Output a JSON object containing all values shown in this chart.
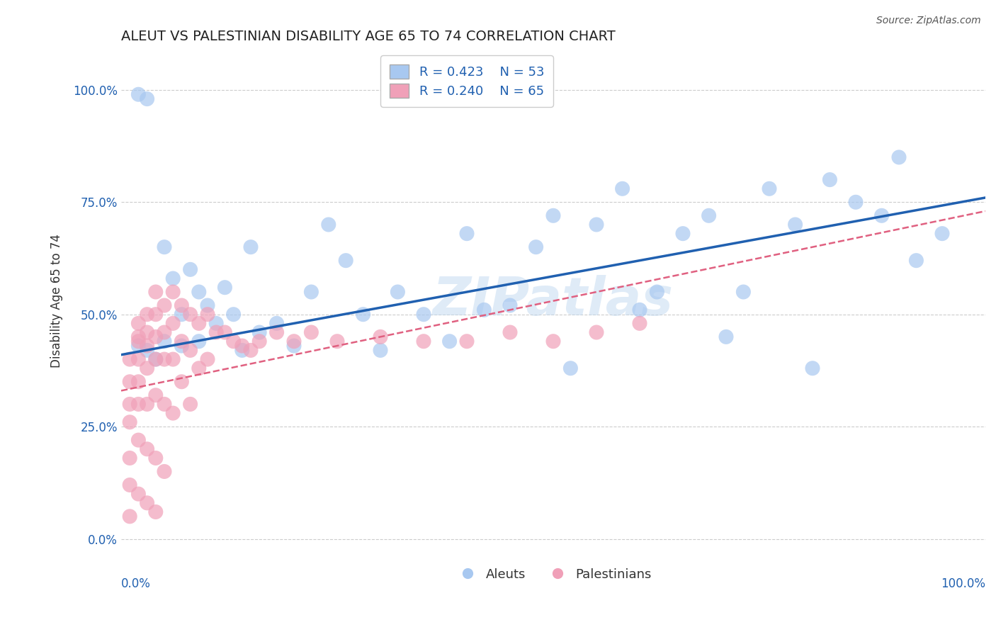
{
  "title": "ALEUT VS PALESTINIAN DISABILITY AGE 65 TO 74 CORRELATION CHART",
  "source": "Source: ZipAtlas.com",
  "ylabel": "Disability Age 65 to 74",
  "yticks": [
    "0.0%",
    "25.0%",
    "50.0%",
    "75.0%",
    "100.0%"
  ],
  "ytick_vals": [
    0.0,
    0.25,
    0.5,
    0.75,
    1.0
  ],
  "xlim": [
    0,
    1.0
  ],
  "ylim": [
    -0.02,
    1.08
  ],
  "aleut_R": 0.423,
  "aleut_N": 53,
  "palest_R": 0.24,
  "palest_N": 65,
  "aleut_color": "#A8C8F0",
  "palest_color": "#F0A0B8",
  "aleut_line_color": "#2060B0",
  "palest_line_color": "#E06080",
  "watermark": "ZIPatlas",
  "background_color": "#FFFFFF",
  "grid_color": "#CCCCCC",
  "aleut_x": [
    0.02,
    0.03,
    0.04,
    0.05,
    0.06,
    0.07,
    0.08,
    0.09,
    0.1,
    0.11,
    0.12,
    0.13,
    0.14,
    0.15,
    0.16,
    0.18,
    0.2,
    0.22,
    0.24,
    0.26,
    0.28,
    0.3,
    0.32,
    0.35,
    0.38,
    0.4,
    0.42,
    0.45,
    0.48,
    0.5,
    0.52,
    0.55,
    0.58,
    0.6,
    0.62,
    0.65,
    0.68,
    0.7,
    0.72,
    0.75,
    0.78,
    0.8,
    0.82,
    0.85,
    0.88,
    0.9,
    0.92,
    0.95,
    0.02,
    0.03,
    0.05,
    0.07,
    0.09
  ],
  "aleut_y": [
    0.99,
    0.98,
    0.4,
    0.65,
    0.58,
    0.5,
    0.6,
    0.55,
    0.52,
    0.48,
    0.56,
    0.5,
    0.42,
    0.65,
    0.46,
    0.48,
    0.43,
    0.55,
    0.7,
    0.62,
    0.5,
    0.42,
    0.55,
    0.5,
    0.44,
    0.68,
    0.51,
    0.52,
    0.65,
    0.72,
    0.38,
    0.7,
    0.78,
    0.51,
    0.55,
    0.68,
    0.72,
    0.45,
    0.55,
    0.78,
    0.7,
    0.38,
    0.8,
    0.75,
    0.72,
    0.85,
    0.62,
    0.68,
    0.43,
    0.42,
    0.44,
    0.43,
    0.44
  ],
  "palest_x": [
    0.01,
    0.01,
    0.01,
    0.01,
    0.01,
    0.01,
    0.01,
    0.02,
    0.02,
    0.02,
    0.02,
    0.02,
    0.02,
    0.02,
    0.03,
    0.03,
    0.03,
    0.03,
    0.03,
    0.03,
    0.03,
    0.04,
    0.04,
    0.04,
    0.04,
    0.04,
    0.04,
    0.04,
    0.05,
    0.05,
    0.05,
    0.05,
    0.05,
    0.06,
    0.06,
    0.06,
    0.06,
    0.07,
    0.07,
    0.07,
    0.08,
    0.08,
    0.08,
    0.09,
    0.09,
    0.1,
    0.1,
    0.11,
    0.12,
    0.13,
    0.14,
    0.15,
    0.16,
    0.18,
    0.2,
    0.22,
    0.25,
    0.3,
    0.35,
    0.4,
    0.45,
    0.5,
    0.55,
    0.6,
    0.02
  ],
  "palest_y": [
    0.4,
    0.35,
    0.3,
    0.26,
    0.18,
    0.12,
    0.05,
    0.48,
    0.44,
    0.4,
    0.35,
    0.3,
    0.22,
    0.1,
    0.5,
    0.46,
    0.43,
    0.38,
    0.3,
    0.2,
    0.08,
    0.55,
    0.5,
    0.45,
    0.4,
    0.32,
    0.18,
    0.06,
    0.52,
    0.46,
    0.4,
    0.3,
    0.15,
    0.55,
    0.48,
    0.4,
    0.28,
    0.52,
    0.44,
    0.35,
    0.5,
    0.42,
    0.3,
    0.48,
    0.38,
    0.5,
    0.4,
    0.46,
    0.46,
    0.44,
    0.43,
    0.42,
    0.44,
    0.46,
    0.44,
    0.46,
    0.44,
    0.45,
    0.44,
    0.44,
    0.46,
    0.44,
    0.46,
    0.48,
    0.45
  ]
}
